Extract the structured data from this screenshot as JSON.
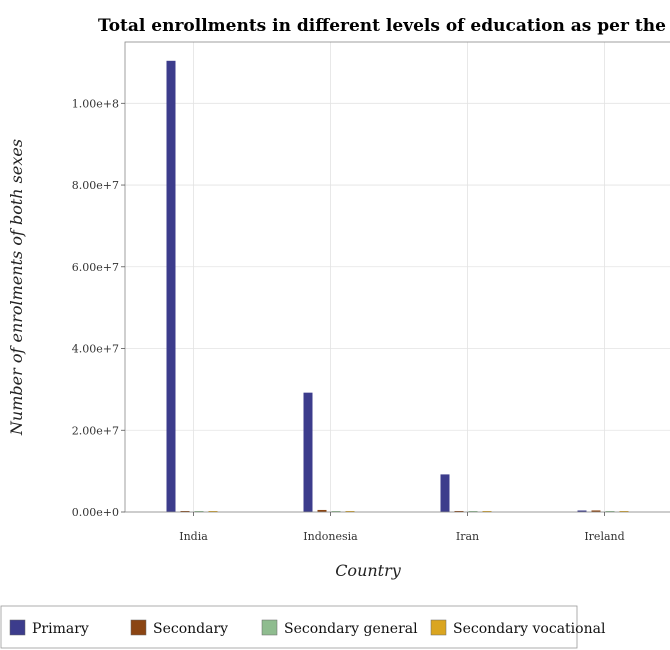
{
  "chart_data": {
    "type": "bar",
    "title": "Total enrollments in different levels of education as per the survey o",
    "xlabel": "Country",
    "ylabel": "Number of enrolments of both sexes",
    "categories": [
      "India",
      "Indonesia",
      "Iran",
      "Ireland"
    ],
    "ylim": [
      0,
      115000000
    ],
    "yticks": [
      0,
      20000000,
      40000000,
      60000000,
      80000000,
      100000000
    ],
    "ytick_labels": [
      "0.00e+0",
      "2.00e+7",
      "4.00e+7",
      "6.00e+7",
      "8.00e+7",
      "1.00e+8"
    ],
    "grid": true,
    "legend_position": "bottom-left",
    "series": [
      {
        "name": "Primary",
        "color": "#3c3c8c",
        "values": [
          110400000,
          29200000,
          9200000,
          370000
        ]
      },
      {
        "name": "Secondary",
        "color": "#8b4513",
        "values": [
          200000,
          500000,
          60000,
          380000
        ]
      },
      {
        "name": "Secondary general",
        "color": "#8fbc8f",
        "values": [
          220000,
          70000,
          20000,
          25000
        ]
      },
      {
        "name": "Secondary vocational",
        "color": "#daa520",
        "values": [
          30000,
          20000,
          150000,
          10000
        ]
      }
    ]
  }
}
